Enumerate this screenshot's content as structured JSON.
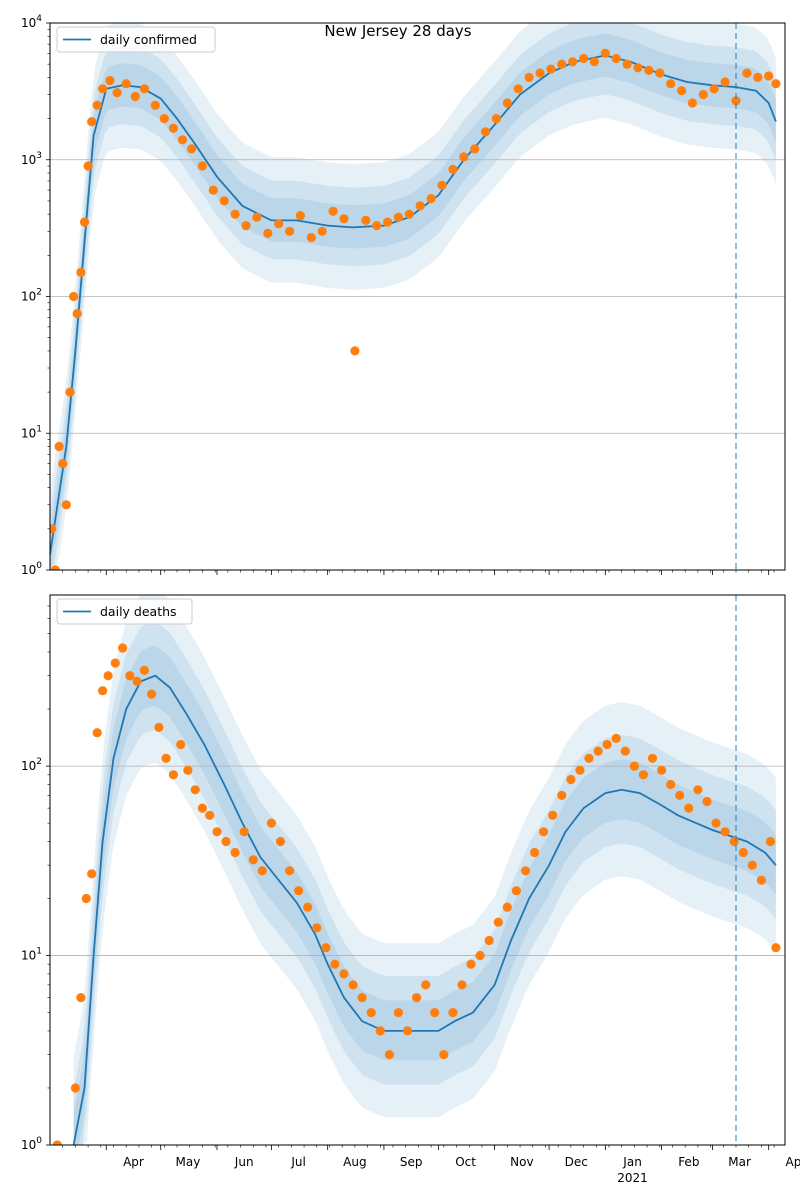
{
  "chart_data": [
    {
      "type": "line",
      "title": "New Jersey 28 days",
      "yscale": "log",
      "ylim": [
        1,
        10000
      ],
      "grid": "y-major",
      "legend_location": "upper-left",
      "yticks": [
        {
          "value": 1,
          "base": "10",
          "exp": "0"
        },
        {
          "value": 10,
          "base": "10",
          "exp": "1"
        },
        {
          "value": 100,
          "base": "10",
          "exp": "2"
        },
        {
          "value": 1000,
          "base": "10",
          "exp": "3"
        },
        {
          "value": 10000,
          "base": "10",
          "exp": "4"
        }
      ],
      "vline_date": "2021-03-14",
      "series": [
        {
          "name": "daily confirmed",
          "kind": "model-median",
          "color": "#1f77b4",
          "x": [
            "2020-03-01",
            "2020-03-10",
            "2020-03-15",
            "2020-03-20",
            "2020-03-25",
            "2020-04-01",
            "2020-04-10",
            "2020-04-20",
            "2020-05-01",
            "2020-05-10",
            "2020-05-20",
            "2020-06-01",
            "2020-06-15",
            "2020-07-01",
            "2020-07-15",
            "2020-08-01",
            "2020-08-15",
            "2020-09-01",
            "2020-09-15",
            "2020-10-01",
            "2020-10-15",
            "2020-11-01",
            "2020-11-15",
            "2020-12-01",
            "2020-12-15",
            "2021-01-01",
            "2021-01-15",
            "2021-02-01",
            "2021-02-15",
            "2021-03-01",
            "2021-03-14",
            "2021-03-25",
            "2021-04-01",
            "2021-04-05"
          ],
          "y": [
            1.3,
            8,
            40,
            250,
            1500,
            3300,
            3500,
            3400,
            2800,
            2000,
            1300,
            750,
            460,
            360,
            360,
            330,
            320,
            330,
            380,
            550,
            1000,
            1800,
            3000,
            4300,
            5200,
            5800,
            5200,
            4200,
            3700,
            3500,
            3400,
            3200,
            2600,
            1900
          ]
        },
        {
          "name": "",
          "kind": "observed",
          "color": "#ff7f0e",
          "x": [
            "2020-03-02",
            "2020-03-04",
            "2020-03-06",
            "2020-03-08",
            "2020-03-10",
            "2020-03-12",
            "2020-03-14",
            "2020-03-16",
            "2020-03-18",
            "2020-03-20",
            "2020-03-22",
            "2020-03-24",
            "2020-03-27",
            "2020-03-30",
            "2020-04-03",
            "2020-04-07",
            "2020-04-12",
            "2020-04-17",
            "2020-04-22",
            "2020-04-28",
            "2020-05-03",
            "2020-05-08",
            "2020-05-13",
            "2020-05-18",
            "2020-05-24",
            "2020-05-30",
            "2020-06-05",
            "2020-06-11",
            "2020-06-17",
            "2020-06-23",
            "2020-06-29",
            "2020-07-05",
            "2020-07-11",
            "2020-07-17",
            "2020-07-23",
            "2020-07-29",
            "2020-08-04",
            "2020-08-10",
            "2020-08-16",
            "2020-08-22",
            "2020-08-28",
            "2020-09-03",
            "2020-09-09",
            "2020-09-15",
            "2020-09-21",
            "2020-09-27",
            "2020-10-03",
            "2020-10-09",
            "2020-10-15",
            "2020-10-21",
            "2020-10-27",
            "2020-11-02",
            "2020-11-08",
            "2020-11-14",
            "2020-11-20",
            "2020-11-26",
            "2020-12-02",
            "2020-12-08",
            "2020-12-14",
            "2020-12-20",
            "2020-12-26",
            "2021-01-01",
            "2021-01-07",
            "2021-01-13",
            "2021-01-19",
            "2021-01-25",
            "2021-01-31",
            "2021-02-06",
            "2021-02-12",
            "2021-02-18",
            "2021-02-24",
            "2021-03-02",
            "2021-03-08",
            "2021-03-14",
            "2021-03-20",
            "2021-03-26",
            "2021-04-01",
            "2021-04-05"
          ],
          "y": [
            2,
            1,
            8,
            6,
            3,
            20,
            100,
            75,
            150,
            350,
            900,
            1900,
            2500,
            3300,
            3800,
            3100,
            3600,
            2900,
            3300,
            2500,
            2000,
            1700,
            1400,
            1200,
            900,
            600,
            500,
            400,
            330,
            380,
            290,
            340,
            300,
            390,
            270,
            300,
            420,
            370,
            40,
            360,
            330,
            350,
            380,
            400,
            460,
            520,
            650,
            850,
            1050,
            1200,
            1600,
            2000,
            2600,
            3300,
            4000,
            4300,
            4600,
            5000,
            5200,
            5500,
            5200,
            6000,
            5500,
            5000,
            4700,
            4500,
            4300,
            3600,
            3200,
            2600,
            3000,
            3300,
            3700,
            2700,
            4300,
            4000,
            4100,
            3600
          ]
        }
      ]
    },
    {
      "type": "line",
      "title": "",
      "yscale": "log",
      "ylim": [
        1,
        800
      ],
      "grid": "y-major",
      "legend_location": "upper-left",
      "yticks": [
        {
          "value": 1,
          "base": "10",
          "exp": "0"
        },
        {
          "value": 10,
          "base": "10",
          "exp": "1"
        },
        {
          "value": 100,
          "base": "10",
          "exp": "2"
        }
      ],
      "vline_date": "2021-03-14",
      "series": [
        {
          "name": "daily deaths",
          "kind": "model-median",
          "color": "#1f77b4",
          "x": [
            "2020-03-14",
            "2020-03-20",
            "2020-03-25",
            "2020-03-30",
            "2020-04-05",
            "2020-04-12",
            "2020-04-20",
            "2020-04-28",
            "2020-05-06",
            "2020-05-15",
            "2020-05-25",
            "2020-06-05",
            "2020-06-15",
            "2020-06-25",
            "2020-07-05",
            "2020-07-15",
            "2020-07-25",
            "2020-08-01",
            "2020-08-10",
            "2020-08-20",
            "2020-09-01",
            "2020-09-10",
            "2020-09-20",
            "2020-10-01",
            "2020-10-10",
            "2020-10-20",
            "2020-11-01",
            "2020-11-10",
            "2020-11-20",
            "2020-12-01",
            "2020-12-10",
            "2020-12-20",
            "2021-01-01",
            "2021-01-10",
            "2021-01-20",
            "2021-02-01",
            "2021-02-10",
            "2021-02-20",
            "2021-03-01",
            "2021-03-10",
            "2021-03-20",
            "2021-03-30",
            "2021-04-05"
          ],
          "y": [
            1,
            2,
            10,
            40,
            110,
            200,
            280,
            300,
            260,
            190,
            130,
            80,
            50,
            33,
            25,
            19,
            13,
            9,
            6,
            4.5,
            4,
            4,
            4,
            4,
            4.5,
            5,
            7,
            12,
            20,
            30,
            45,
            60,
            72,
            75,
            72,
            62,
            55,
            50,
            46,
            43,
            40,
            35,
            30
          ]
        },
        {
          "name": "",
          "kind": "observed",
          "color": "#ff7f0e",
          "x": [
            "2020-03-05",
            "2020-03-15",
            "2020-03-18",
            "2020-03-21",
            "2020-03-24",
            "2020-03-27",
            "2020-03-30",
            "2020-04-02",
            "2020-04-06",
            "2020-04-10",
            "2020-04-14",
            "2020-04-18",
            "2020-04-22",
            "2020-04-26",
            "2020-04-30",
            "2020-05-04",
            "2020-05-08",
            "2020-05-12",
            "2020-05-16",
            "2020-05-20",
            "2020-05-24",
            "2020-05-28",
            "2020-06-01",
            "2020-06-06",
            "2020-06-11",
            "2020-06-16",
            "2020-06-21",
            "2020-06-26",
            "2020-07-01",
            "2020-07-06",
            "2020-07-11",
            "2020-07-16",
            "2020-07-21",
            "2020-07-26",
            "2020-07-31",
            "2020-08-05",
            "2020-08-10",
            "2020-08-15",
            "2020-08-20",
            "2020-08-25",
            "2020-08-30",
            "2020-09-04",
            "2020-09-09",
            "2020-09-14",
            "2020-09-19",
            "2020-09-24",
            "2020-09-29",
            "2020-10-04",
            "2020-10-09",
            "2020-10-14",
            "2020-10-19",
            "2020-10-24",
            "2020-10-29",
            "2020-11-03",
            "2020-11-08",
            "2020-11-13",
            "2020-11-18",
            "2020-11-23",
            "2020-11-28",
            "2020-12-03",
            "2020-12-08",
            "2020-12-13",
            "2020-12-18",
            "2020-12-23",
            "2020-12-28",
            "2021-01-02",
            "2021-01-07",
            "2021-01-12",
            "2021-01-17",
            "2021-01-22",
            "2021-01-27",
            "2021-02-01",
            "2021-02-06",
            "2021-02-11",
            "2021-02-16",
            "2021-02-21",
            "2021-02-26",
            "2021-03-03",
            "2021-03-08",
            "2021-03-13",
            "2021-03-18",
            "2021-03-23",
            "2021-03-28",
            "2021-04-02",
            "2021-04-05"
          ],
          "y": [
            1,
            2,
            6,
            20,
            27,
            150,
            250,
            300,
            350,
            420,
            300,
            280,
            320,
            240,
            160,
            110,
            90,
            130,
            95,
            75,
            60,
            55,
            45,
            40,
            35,
            45,
            32,
            28,
            50,
            40,
            28,
            22,
            18,
            14,
            11,
            9,
            8,
            7,
            6,
            5,
            4,
            3,
            5,
            4,
            6,
            7,
            5,
            3,
            5,
            7,
            9,
            10,
            12,
            15,
            18,
            22,
            28,
            35,
            45,
            55,
            70,
            85,
            95,
            110,
            120,
            130,
            140,
            120,
            100,
            90,
            110,
            95,
            80,
            70,
            60,
            75,
            65,
            50,
            45,
            40,
            35,
            30,
            25,
            40,
            11
          ]
        }
      ]
    }
  ],
  "x_axis": {
    "months": [
      "Apr",
      "May",
      "Jun",
      "Jul",
      "Aug",
      "Sep",
      "Oct",
      "Nov",
      "Dec",
      "Jan",
      "Feb",
      "Mar",
      "Apr"
    ],
    "month_dates": [
      "2020-04-01",
      "2020-05-01",
      "2020-06-01",
      "2020-07-01",
      "2020-08-01",
      "2020-09-01",
      "2020-10-01",
      "2020-11-01",
      "2020-12-01",
      "2021-01-01",
      "2021-02-01",
      "2021-03-01",
      "2021-04-01"
    ],
    "year_label": "2021",
    "year_label_date": "2021-01-01",
    "range": [
      "2020-03-01",
      "2021-04-10"
    ]
  }
}
